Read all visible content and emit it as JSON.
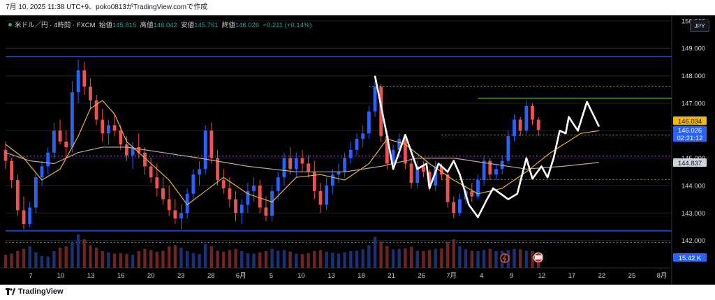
{
  "header": {
    "caption": "7月 10, 2025 11:38 UTC+9、poko0813がTradingView.comで作成"
  },
  "legend": {
    "symbol": "米ドル／円 · 4時間 · FXCM",
    "open_label": "始値",
    "open": "145.815",
    "high_label": "高値",
    "high": "146.042",
    "low_label": "安値",
    "low": "145.761",
    "close_label": "終値",
    "close": "146.026",
    "change": "+0.211 (+0.14%)"
  },
  "currency_button": "JPY",
  "footer": {
    "brand": "TradingView"
  },
  "colors": {
    "up": "#2962ff",
    "down": "#ef5350",
    "ma_fast": "#e6b33b",
    "ma_slow": "#b8aba2",
    "zigzag": "#ffffff",
    "hline_blue": "#2962ff",
    "dotted_green": "#8bc34a",
    "solid_green": "#6ccf3f",
    "magenta": "#e040fb"
  },
  "chart_data": {
    "type": "candlestick",
    "y_axis": {
      "ticks": [
        "150.000",
        "149.000",
        "148.000",
        "147.000",
        "146.000",
        "145.000",
        "144.000",
        "143.000",
        "142.000"
      ],
      "tick_values": [
        150,
        149,
        148,
        147,
        146,
        145,
        144,
        143,
        142
      ],
      "range": [
        141.0,
        150.2
      ]
    },
    "x_axis": {
      "ticks": [
        "7",
        "10",
        "13",
        "16",
        "20",
        "23",
        "28",
        "6月",
        "5",
        "10",
        "13",
        "18",
        "21",
        "26",
        "7月",
        "4",
        "9",
        "12",
        "17",
        "22",
        "25",
        "8月"
      ],
      "range": [
        0,
        110
      ]
    },
    "price_labels": {
      "current": "146.034",
      "last": "146.026",
      "countdown": "02:21:12",
      "ma": "144.837",
      "volume": "15.42 K"
    },
    "horizontal_lines": [
      {
        "style": "solid-blue",
        "value": 148.7
      },
      {
        "style": "solid-blue",
        "value": 142.35
      },
      {
        "style": "dotted-green",
        "value": 147.62,
        "from": 60
      },
      {
        "style": "solid-green",
        "value": 147.18,
        "from": 78
      },
      {
        "style": "dotted-green",
        "value": 145.84,
        "from": 72
      },
      {
        "style": "dotted-green",
        "value": 144.22,
        "from": 72
      },
      {
        "style": "dotted-magenta",
        "value": 145.07
      },
      {
        "style": "dotted-blue",
        "value": 141.93
      }
    ],
    "zigzag": [
      [
        61,
        148.0
      ],
      [
        63,
        145.8
      ],
      [
        64,
        144.6
      ],
      [
        66,
        145.85
      ],
      [
        68,
        144.6
      ],
      [
        69.5,
        144.8
      ],
      [
        70,
        143.9
      ],
      [
        71.5,
        144.8
      ],
      [
        73,
        144.5
      ],
      [
        74,
        144.9
      ],
      [
        75,
        144.4
      ],
      [
        76.5,
        143.3
      ],
      [
        78,
        142.85
      ],
      [
        79.5,
        143.5
      ],
      [
        80.5,
        143.9
      ],
      [
        83,
        143.5
      ],
      [
        84.5,
        143.7
      ],
      [
        86,
        145.0
      ],
      [
        87,
        144.25
      ],
      [
        88.5,
        144.7
      ],
      [
        89.5,
        144.3
      ],
      [
        90.5,
        145.0
      ],
      [
        91.5,
        146.0
      ],
      [
        92.5,
        145.9
      ],
      [
        93,
        146.5
      ],
      [
        94.5,
        146.0
      ],
      [
        96,
        147.05
      ],
      [
        98,
        146.15
      ]
    ],
    "ohlc": [
      [
        145.3,
        145.6,
        144.6,
        144.9
      ],
      [
        144.9,
        145.0,
        143.9,
        144.2
      ],
      [
        144.2,
        144.4,
        142.9,
        143.1
      ],
      [
        143.1,
        143.6,
        142.4,
        142.6
      ],
      [
        142.6,
        143.4,
        142.5,
        143.2
      ],
      [
        143.2,
        144.5,
        143.0,
        144.3
      ],
      [
        144.3,
        144.9,
        144.0,
        144.7
      ],
      [
        144.7,
        145.4,
        144.4,
        145.2
      ],
      [
        145.2,
        146.3,
        145.0,
        146.0
      ],
      [
        146.0,
        146.4,
        145.5,
        145.6
      ],
      [
        145.6,
        146.0,
        145.0,
        145.4
      ],
      [
        145.4,
        147.8,
        145.2,
        147.4
      ],
      [
        147.4,
        148.6,
        147.0,
        148.2
      ],
      [
        148.2,
        148.5,
        147.3,
        147.6
      ],
      [
        147.6,
        147.9,
        146.8,
        147.1
      ],
      [
        147.1,
        147.3,
        146.2,
        146.4
      ],
      [
        146.4,
        146.8,
        145.6,
        145.9
      ],
      [
        145.9,
        146.4,
        145.5,
        146.2
      ],
      [
        146.2,
        146.6,
        145.8,
        146.0
      ],
      [
        146.0,
        146.2,
        145.3,
        145.5
      ],
      [
        145.5,
        145.8,
        144.9,
        145.1
      ],
      [
        145.1,
        145.6,
        144.6,
        145.4
      ],
      [
        145.4,
        145.9,
        145.0,
        145.2
      ],
      [
        145.2,
        145.4,
        144.4,
        144.7
      ],
      [
        144.7,
        145.0,
        144.1,
        144.3
      ],
      [
        144.3,
        144.8,
        143.6,
        143.9
      ],
      [
        143.9,
        144.3,
        143.3,
        143.5
      ],
      [
        143.5,
        144.0,
        142.9,
        143.1
      ],
      [
        143.1,
        143.5,
        142.6,
        142.8
      ],
      [
        142.8,
        143.3,
        142.4,
        143.0
      ],
      [
        143.0,
        143.9,
        142.8,
        143.7
      ],
      [
        143.7,
        144.6,
        143.5,
        144.4
      ],
      [
        144.4,
        144.9,
        144.0,
        144.6
      ],
      [
        144.6,
        146.2,
        144.4,
        146.0
      ],
      [
        146.0,
        146.3,
        144.8,
        145.0
      ],
      [
        145.0,
        145.3,
        144.0,
        144.2
      ],
      [
        144.2,
        144.6,
        143.7,
        143.9
      ],
      [
        143.9,
        144.3,
        143.2,
        143.5
      ],
      [
        143.5,
        143.8,
        142.7,
        143.0
      ],
      [
        143.0,
        143.5,
        142.6,
        143.3
      ],
      [
        143.3,
        144.1,
        143.0,
        143.8
      ],
      [
        143.8,
        144.3,
        143.4,
        144.0
      ],
      [
        144.0,
        144.2,
        143.0,
        143.2
      ],
      [
        143.2,
        143.6,
        142.7,
        142.9
      ],
      [
        142.9,
        144.0,
        142.7,
        143.8
      ],
      [
        143.8,
        144.5,
        143.5,
        144.3
      ],
      [
        144.3,
        145.2,
        144.0,
        145.0
      ],
      [
        145.0,
        145.4,
        144.4,
        144.6
      ],
      [
        144.6,
        145.2,
        144.3,
        145.0
      ],
      [
        145.0,
        145.3,
        144.5,
        144.8
      ],
      [
        144.8,
        145.1,
        144.3,
        144.5
      ],
      [
        144.5,
        144.9,
        143.5,
        143.8
      ],
      [
        143.8,
        144.1,
        143.0,
        143.3
      ],
      [
        143.3,
        144.3,
        143.1,
        144.0
      ],
      [
        144.0,
        144.6,
        143.7,
        144.4
      ],
      [
        144.4,
        144.8,
        144.1,
        144.5
      ],
      [
        144.5,
        145.2,
        144.3,
        145.0
      ],
      [
        145.0,
        145.6,
        144.8,
        145.3
      ],
      [
        145.3,
        145.9,
        145.1,
        145.7
      ],
      [
        145.7,
        146.2,
        145.4,
        145.9
      ],
      [
        145.9,
        146.9,
        145.7,
        146.7
      ],
      [
        146.7,
        147.9,
        146.5,
        147.6
      ],
      [
        147.6,
        147.7,
        145.6,
        145.8
      ],
      [
        145.8,
        146.0,
        144.6,
        144.8
      ],
      [
        144.8,
        145.5,
        144.6,
        145.3
      ],
      [
        145.3,
        145.9,
        145.0,
        145.7
      ],
      [
        145.7,
        145.8,
        144.6,
        144.8
      ],
      [
        144.8,
        145.0,
        143.9,
        144.1
      ],
      [
        144.1,
        144.9,
        143.9,
        144.7
      ],
      [
        144.7,
        144.9,
        144.3,
        144.5
      ],
      [
        144.5,
        144.6,
        143.8,
        144.0
      ],
      [
        144.0,
        144.9,
        143.8,
        144.7
      ],
      [
        144.7,
        144.8,
        144.2,
        144.4
      ],
      [
        144.4,
        144.5,
        143.2,
        143.4
      ],
      [
        143.4,
        143.6,
        142.8,
        143.0
      ],
      [
        143.0,
        143.7,
        142.9,
        143.5
      ],
      [
        143.5,
        144.0,
        143.3,
        143.8
      ],
      [
        143.8,
        144.1,
        143.4,
        143.6
      ],
      [
        143.6,
        144.4,
        143.5,
        144.2
      ],
      [
        144.2,
        145.1,
        144.0,
        144.9
      ],
      [
        144.9,
        145.0,
        144.2,
        144.4
      ],
      [
        144.4,
        144.8,
        144.2,
        144.6
      ],
      [
        144.6,
        145.1,
        144.4,
        144.9
      ],
      [
        144.9,
        146.0,
        144.8,
        145.8
      ],
      [
        145.8,
        146.6,
        145.6,
        146.4
      ],
      [
        146.4,
        146.5,
        145.8,
        146.0
      ],
      [
        146.0,
        147.1,
        145.9,
        146.9
      ],
      [
        146.9,
        147.0,
        146.2,
        146.4
      ],
      [
        146.4,
        146.5,
        145.8,
        146.03
      ]
    ],
    "ma_fast": [
      [
        0,
        145.5
      ],
      [
        3,
        145.0
      ],
      [
        6,
        144.2
      ],
      [
        9,
        144.6
      ],
      [
        12,
        145.8
      ],
      [
        14,
        146.8
      ],
      [
        16,
        147.1
      ],
      [
        18,
        146.6
      ],
      [
        20,
        145.6
      ],
      [
        23,
        145.0
      ],
      [
        27,
        144.2
      ],
      [
        30,
        143.3
      ],
      [
        33,
        143.8
      ],
      [
        36,
        144.3
      ],
      [
        40,
        143.7
      ],
      [
        44,
        143.4
      ],
      [
        48,
        144.3
      ],
      [
        52,
        144.4
      ],
      [
        56,
        144.2
      ],
      [
        60,
        144.8
      ],
      [
        63,
        145.7
      ],
      [
        66,
        145.5
      ],
      [
        70,
        144.8
      ],
      [
        74,
        144.2
      ],
      [
        78,
        143.7
      ],
      [
        82,
        143.9
      ],
      [
        86,
        144.5
      ],
      [
        90,
        145.2
      ],
      [
        95,
        145.9
      ],
      [
        98,
        146.0
      ]
    ],
    "ma_slow": [
      [
        0,
        145.2
      ],
      [
        4,
        144.9
      ],
      [
        8,
        144.8
      ],
      [
        12,
        145.2
      ],
      [
        16,
        145.4
      ],
      [
        20,
        145.4
      ],
      [
        26,
        145.2
      ],
      [
        32,
        145.0
      ],
      [
        40,
        144.7
      ],
      [
        48,
        144.5
      ],
      [
        56,
        144.5
      ],
      [
        62,
        144.7
      ],
      [
        68,
        145.0
      ],
      [
        74,
        145.0
      ],
      [
        80,
        144.8
      ],
      [
        86,
        144.6
      ],
      [
        92,
        144.7
      ],
      [
        98,
        144.84
      ]
    ],
    "volume": [
      55,
      60,
      72,
      80,
      90,
      65,
      50,
      48,
      70,
      85,
      90,
      110,
      140,
      120,
      95,
      85,
      70,
      65,
      60,
      62,
      58,
      55,
      70,
      80,
      75,
      68,
      72,
      90,
      95,
      85,
      70,
      62,
      58,
      100,
      90,
      72,
      68,
      75,
      80,
      70,
      62,
      60,
      65,
      70,
      80,
      72,
      75,
      68,
      60,
      58,
      62,
      70,
      75,
      68,
      64,
      60,
      66,
      70,
      72,
      78,
      95,
      130,
      110,
      92,
      78,
      80,
      82,
      88,
      72,
      70,
      75,
      80,
      82,
      110,
      120,
      90,
      78,
      72,
      70,
      75,
      80,
      70,
      72,
      75,
      80,
      78,
      72,
      70,
      65
    ]
  }
}
